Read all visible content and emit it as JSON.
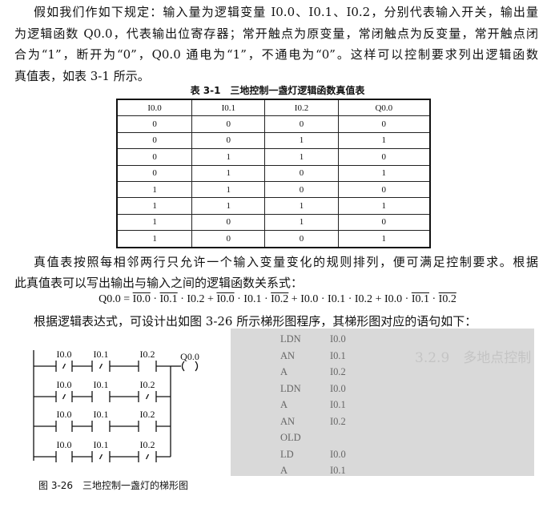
{
  "paragraph1": [
    "假如我们作如下规定：输入量为逻辑变量 I0.0、I0.1、I0.2，分别代表输入开关，输出量",
    "为逻辑函数 Q0.0，代表输出位寄存器；常开触点为原变量，常闭触点为反变量，常开触点闭",
    "合为“1”，断开为“0”，Q0.0 通电为“1”，不通电为“0”。这样可以控制要求列出逻辑函数",
    "真值表，如表 3-1 所示。"
  ],
  "table_caption": "表 3-1　三地控制一盏灯逻辑函数真值表",
  "table": {
    "headers": [
      "I0.0",
      "I0.1",
      "I0.2",
      "Q0.0"
    ],
    "rows": [
      [
        "0",
        "0",
        "0",
        "0"
      ],
      [
        "0",
        "0",
        "1",
        "1"
      ],
      [
        "0",
        "1",
        "1",
        "0"
      ],
      [
        "0",
        "1",
        "0",
        "1"
      ],
      [
        "1",
        "1",
        "0",
        "0"
      ],
      [
        "1",
        "1",
        "1",
        "1"
      ],
      [
        "1",
        "0",
        "1",
        "0"
      ],
      [
        "1",
        "0",
        "0",
        "1"
      ]
    ]
  },
  "paragraph2": [
    "真值表按照每相邻两行只允许一个输入变量变化的规则排列，便可满足控制要求。根据",
    "此真值表可以写出输出与输入之间的逻辑函数关系式："
  ],
  "formula": {
    "lhs": "Q0.0 = ",
    "terms": [
      [
        {
          "v": "I0.0",
          "neg": true
        },
        {
          "v": "I0.1",
          "neg": true
        },
        {
          "v": "I0.2",
          "neg": false
        }
      ],
      [
        {
          "v": "I0.0",
          "neg": true
        },
        {
          "v": "I0.1",
          "neg": false
        },
        {
          "v": "I0.2",
          "neg": true
        }
      ],
      [
        {
          "v": "I0.0",
          "neg": false
        },
        {
          "v": "I0.1",
          "neg": false
        },
        {
          "v": "I0.2",
          "neg": false
        }
      ],
      [
        {
          "v": "I0.0",
          "neg": false
        },
        {
          "v": "I0.1",
          "neg": true
        },
        {
          "v": "I0.2",
          "neg": true
        }
      ]
    ]
  },
  "paragraph3": "根据逻辑表达式，可设计出如图 3-26 所示梯形图程序，其梯形图对应的语句如下：",
  "ladder": {
    "coil": "Q0.0",
    "rungs": [
      [
        {
          "label": "I0.0",
          "nc": true
        },
        {
          "label": "I0.1",
          "nc": true
        },
        {
          "label": "I0.2",
          "nc": false
        }
      ],
      [
        {
          "label": "I0.0",
          "nc": true
        },
        {
          "label": "I0.1",
          "nc": false
        },
        {
          "label": "I0.2",
          "nc": true
        }
      ],
      [
        {
          "label": "I0.0",
          "nc": false
        },
        {
          "label": "I0.1",
          "nc": false
        },
        {
          "label": "I0.2",
          "nc": false
        }
      ],
      [
        {
          "label": "I0.0",
          "nc": false
        },
        {
          "label": "I0.1",
          "nc": true
        },
        {
          "label": "I0.2",
          "nc": true
        }
      ]
    ],
    "caption": "图 3-26　三地控制一盏灯的梯形图"
  },
  "statement_list": {
    "bleed_through_heading": "3.2.9　多地点控制",
    "rows": [
      [
        "LDN",
        "I0.0"
      ],
      [
        "AN",
        "I0.1"
      ],
      [
        "A",
        "I0.2"
      ],
      [
        "LDN",
        "I0.0"
      ],
      [
        "A",
        "I0.1"
      ],
      [
        "AN",
        "I0.2"
      ],
      [
        "OLD",
        ""
      ],
      [
        "LD",
        "I0.0"
      ],
      [
        "A",
        "I0.1"
      ]
    ]
  }
}
